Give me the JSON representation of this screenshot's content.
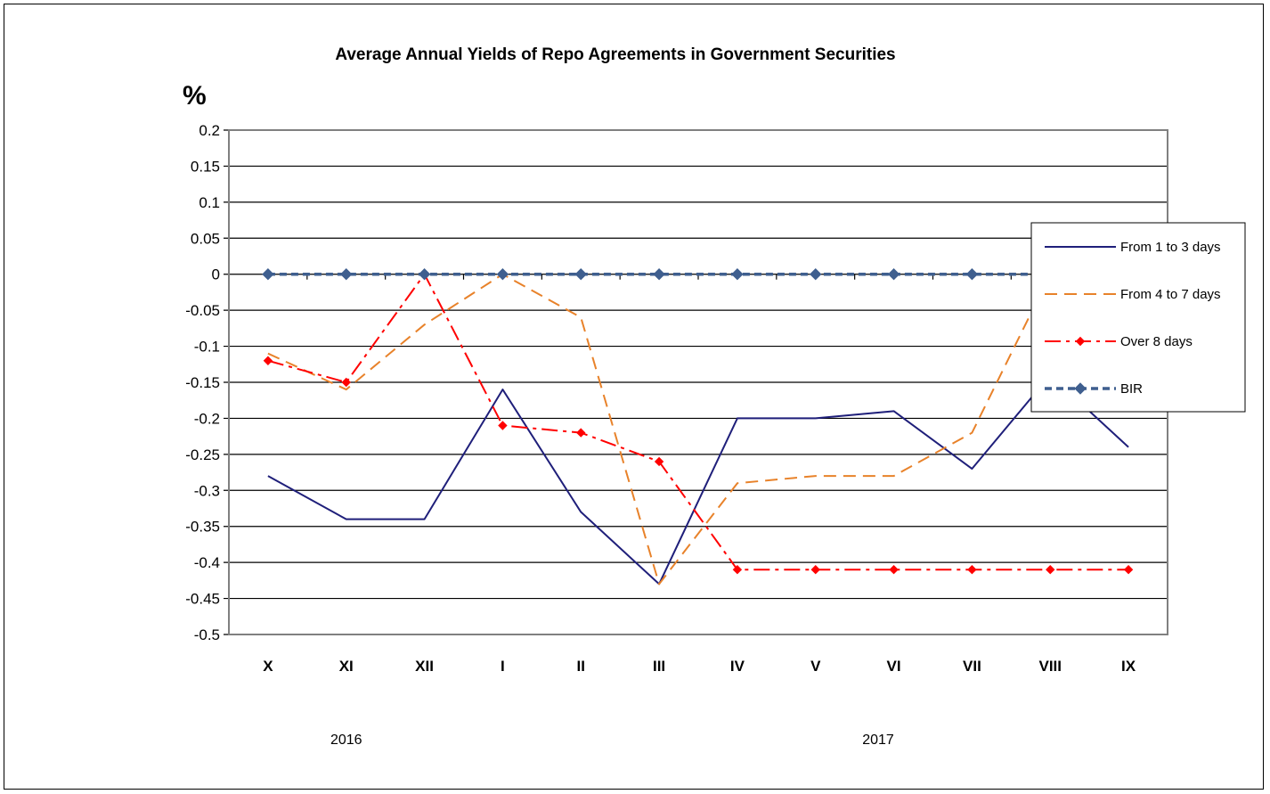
{
  "chart_data": {
    "type": "line",
    "title": "Average Annual Yields of Repo Agreements in Government Securities",
    "ylabel": "%",
    "xlabel": "",
    "ylim": [
      -0.5,
      0.2
    ],
    "y_ticks": [
      "0.2",
      "0.15",
      "0.1",
      "0.05",
      "0",
      "-0.05",
      "-0.1",
      "-0.15",
      "-0.2",
      "-0.25",
      "-0.3",
      "-0.35",
      "-0.4",
      "-0.45",
      "-0.5"
    ],
    "y_tick_values": [
      0.2,
      0.15,
      0.1,
      0.05,
      0,
      -0.05,
      -0.1,
      -0.15,
      -0.2,
      -0.25,
      -0.3,
      -0.35,
      -0.4,
      -0.45,
      -0.5
    ],
    "categories": [
      "X",
      "XI",
      "XII",
      "I",
      "II",
      "III",
      "IV",
      "V",
      "VI",
      "VII",
      "VIII",
      "IX"
    ],
    "year_labels": [
      {
        "label": "2016",
        "category_index": 1
      },
      {
        "label": "2017",
        "category_index": 7.8
      }
    ],
    "grid": true,
    "legend_position": "right",
    "series": [
      {
        "name": "From 1 to 3 days",
        "color": "#1f1f7a",
        "dash": "solid",
        "marker": "none",
        "values": [
          -0.28,
          -0.34,
          -0.34,
          -0.16,
          -0.33,
          -0.43,
          -0.2,
          -0.2,
          -0.19,
          -0.27,
          -0.14,
          -0.24
        ]
      },
      {
        "name": "From 4 to 7 days",
        "color": "#e8822a",
        "dash": "dash",
        "marker": "none",
        "values": [
          -0.11,
          -0.16,
          -0.07,
          0.0,
          -0.06,
          -0.43,
          -0.29,
          -0.28,
          -0.28,
          -0.22,
          0.0,
          -0.08
        ]
      },
      {
        "name": "Over 8 days",
        "color": "#ff0000",
        "dash": "dashdot",
        "marker": "diamond-small",
        "values": [
          -0.12,
          -0.15,
          0.0,
          -0.21,
          -0.22,
          -0.26,
          -0.41,
          -0.41,
          -0.41,
          -0.41,
          -0.41,
          -0.41
        ]
      },
      {
        "name": "BIR",
        "color": "#3f5f8f",
        "dash": "dashed-thick",
        "marker": "diamond",
        "values": [
          0,
          0,
          0,
          0,
          0,
          0,
          0,
          0,
          0,
          0,
          0,
          0
        ]
      }
    ]
  }
}
